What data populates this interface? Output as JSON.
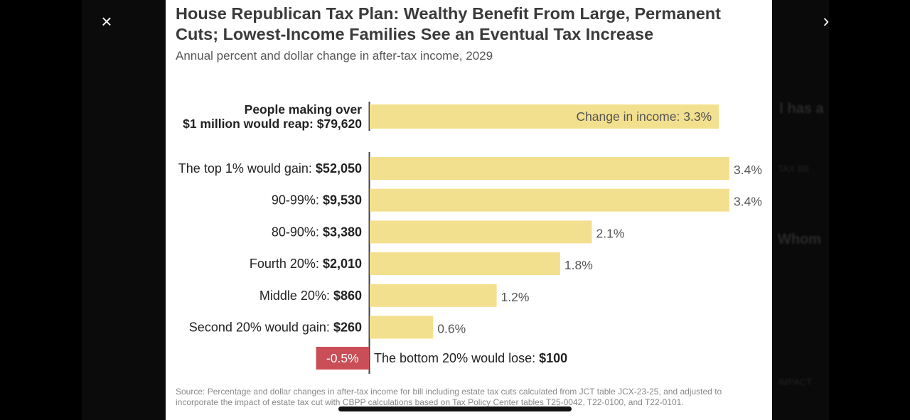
{
  "viewer": {
    "close_label": "×",
    "next_label": "›",
    "background_ghost_texts": [
      "Ⅰ has a",
      "TAX BE",
      "Whom",
      "IMPACT"
    ]
  },
  "colors": {
    "bar": "#f3e08e",
    "negative_bar": "#c94e57",
    "axis": "#444444"
  },
  "chart_data": {
    "type": "bar",
    "orientation": "horizontal",
    "title": "House Republican Tax Plan: Wealthy Benefit From Large, Permanent Cuts; Lowest-Income Families See an Eventual Tax Increase",
    "subtitle": "Annual percent and dollar change in after-tax income, 2029",
    "highlight": {
      "label_line1": "People making over",
      "label_line2": "$1 million would reap: $79,620",
      "value": 3.3,
      "value_label": "Change in income: 3.3%"
    },
    "categories": [
      {
        "prefix": "The top 1% would gain: ",
        "amount": "$52,050"
      },
      {
        "prefix": "90-99%: ",
        "amount": "$9,530"
      },
      {
        "prefix": "80-90%: ",
        "amount": "$3,380"
      },
      {
        "prefix": "Fourth 20%: ",
        "amount": "$2,010"
      },
      {
        "prefix": "Middle 20%: ",
        "amount": "$860"
      },
      {
        "prefix": "Second 20% would gain: ",
        "amount": "$260"
      }
    ],
    "values": [
      3.4,
      3.4,
      2.1,
      1.8,
      1.2,
      0.6
    ],
    "value_labels": [
      "3.4%",
      "3.4%",
      "2.1%",
      "1.8%",
      "1.2%",
      "0.6%"
    ],
    "negative": {
      "value": -0.5,
      "value_label": "-0.5%",
      "prefix": "The bottom 20% would lose: ",
      "amount": "$100"
    },
    "xlim": [
      0,
      3.4
    ]
  },
  "source": "Source: Percentage and dollar changes in after-tax income for bill including estate tax cuts calculated from JCT table JCX-23-25, and adjusted to incorporate the impact of estate tax cut with CBPP calculations based on Tax Policy Center tables T25-0042, T22-0100, and T22-0101."
}
